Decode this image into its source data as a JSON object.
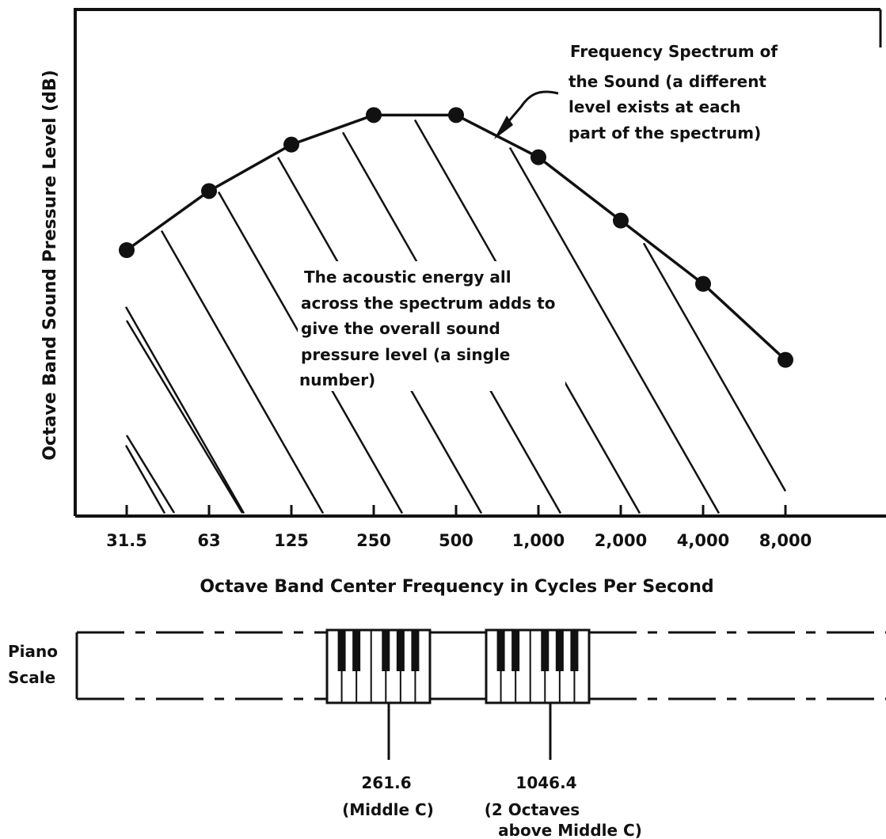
{
  "chart_data": {
    "type": "line",
    "title": "",
    "xlabel": "Octave Band Center Frequency in Cycles Per Second",
    "ylabel": "Octave Band Sound Pressure Level (dB)",
    "x_scale": "log",
    "grid": false,
    "categories": [
      "31.5",
      "63",
      "125",
      "250",
      "500",
      "1,000",
      "2,000",
      "4,000",
      "8,000"
    ],
    "series": [
      {
        "values": [
          63,
          77,
          88,
          95,
          95,
          85,
          70,
          55,
          37
        ]
      }
    ],
    "ylim": [
      0,
      120
    ],
    "annotations": {
      "spectrum_note": [
        "Frequency Spectrum of",
        "the Sound (a different",
        "level exists at each",
        "part of the spectrum)"
      ],
      "energy_note": [
        "The acoustic energy all",
        "across the spectrum adds to",
        "give the overall sound",
        "pressure level (a single",
        "number)"
      ]
    }
  },
  "piano": {
    "label_line1": "Piano",
    "label_line2": "Scale",
    "marker1_line1": "261.6",
    "marker1_line2": "(Middle C)",
    "marker2_line1": "1046.4",
    "marker2_line2": "(2 Octaves",
    "marker2_line3": "above Middle C)"
  }
}
